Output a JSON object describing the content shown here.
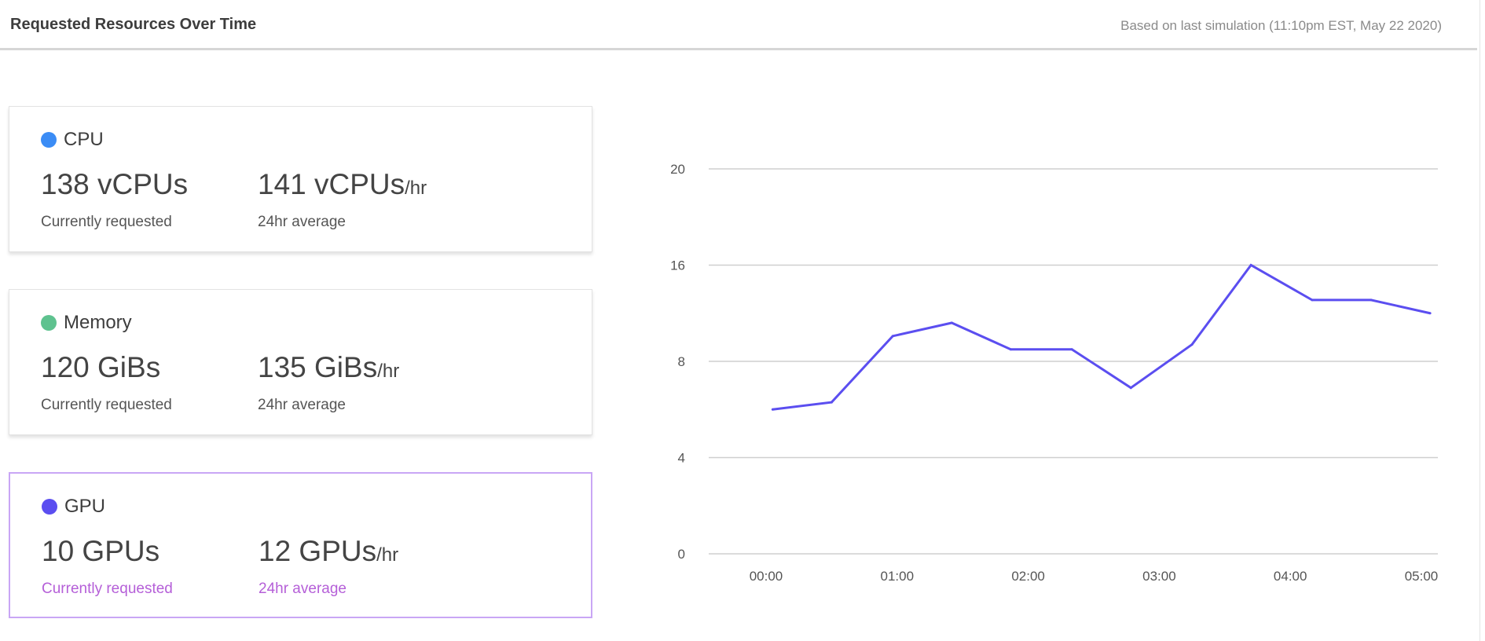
{
  "header": {
    "title": "Requested Resources Over Time",
    "subtitle": "Based on last simulation (11:10pm EST, May 22 2020)"
  },
  "cards": [
    {
      "label": "CPU",
      "color": "#3b8cf5",
      "current": "138 vCPUs",
      "average": "141 vCPUs",
      "average_unit": "/hr",
      "current_caption": "Currently requested",
      "average_caption": "24hr average",
      "selected": false
    },
    {
      "label": "Memory",
      "color": "#5ec28f",
      "current": "120 GiBs",
      "average": "135 GiBs",
      "average_unit": "/hr",
      "current_caption": "Currently requested",
      "average_caption": "24hr average",
      "selected": false
    },
    {
      "label": "GPU",
      "color": "#5b4ef0",
      "current": "10 GPUs",
      "average": "12 GPUs",
      "average_unit": "/hr",
      "current_caption": "Currently requested",
      "average_caption": "24hr average",
      "selected": true
    }
  ],
  "chart_data": {
    "type": "line",
    "title": "",
    "xlabel": "",
    "ylabel": "",
    "y_ticks": [
      "0",
      "4",
      "8",
      "16",
      "20"
    ],
    "x_ticks": [
      "00:00",
      "01:00",
      "02:00",
      "03:00",
      "04:00",
      "05:00"
    ],
    "grid": "horizontal",
    "line_color": "#5b4ef0",
    "series": [
      {
        "x": [
          "00:03",
          "00:30",
          "00:58",
          "01:25",
          "01:52",
          "02:20",
          "02:47",
          "03:15",
          "03:42",
          "04:10",
          "04:37",
          "05:04"
        ],
        "values": [
          6.0,
          6.3,
          10.1,
          11.2,
          9.0,
          9.0,
          6.9,
          9.4,
          16.0,
          13.1,
          13.1,
          12.0
        ]
      }
    ]
  }
}
